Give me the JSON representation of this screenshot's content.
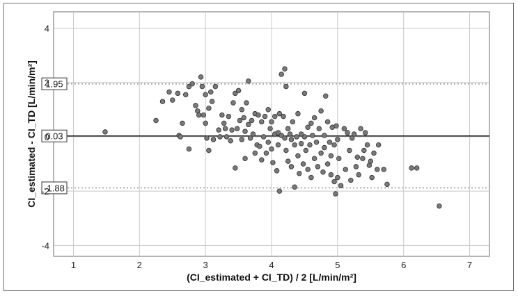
{
  "chart_data": {
    "type": "scatter",
    "title": "",
    "xlabel": "(CI_estimated + CI_TD) / 2 [L/min/m²]",
    "ylabel": "CI_estimated - CI_TD [L/min/m²]",
    "xlim": [
      0.7,
      7.3
    ],
    "ylim": [
      -4.4,
      4.6
    ],
    "xticks": [
      1,
      2,
      3,
      4,
      5,
      6,
      7
    ],
    "yticks": [
      -4,
      -2,
      0,
      2,
      4
    ],
    "grid": true,
    "reference_lines": [
      {
        "label": "1.95",
        "value": 1.95,
        "style": "dotted"
      },
      {
        "label": "0.03",
        "value": 0.03,
        "style": "solid"
      },
      {
        "label": "-1.88",
        "value": -1.88,
        "style": "dotted"
      }
    ],
    "points": [
      [
        1.48,
        0.18
      ],
      [
        2.25,
        0.6
      ],
      [
        2.35,
        1.3
      ],
      [
        2.45,
        1.65
      ],
      [
        2.5,
        1.35
      ],
      [
        2.58,
        1.6
      ],
      [
        2.6,
        0.05
      ],
      [
        2.62,
        0.0
      ],
      [
        2.65,
        0.5
      ],
      [
        2.7,
        1.55
      ],
      [
        2.75,
        1.85
      ],
      [
        2.75,
        -0.45
      ],
      [
        2.8,
        1.95
      ],
      [
        2.85,
        1.15
      ],
      [
        2.88,
        0.95
      ],
      [
        2.9,
        0.8
      ],
      [
        2.93,
        2.2
      ],
      [
        2.95,
        1.85
      ],
      [
        2.97,
        0.8
      ],
      [
        3.0,
        1.55
      ],
      [
        3.0,
        0.5
      ],
      [
        3.02,
        -0.05
      ],
      [
        3.05,
        -0.5
      ],
      [
        3.05,
        1.05
      ],
      [
        3.08,
        1.65
      ],
      [
        3.1,
        1.3
      ],
      [
        3.12,
        -0.1
      ],
      [
        3.15,
        1.85
      ],
      [
        3.2,
        0.25
      ],
      [
        3.22,
        0.0
      ],
      [
        3.25,
        0.8
      ],
      [
        3.28,
        0.5
      ],
      [
        3.3,
        0.3
      ],
      [
        3.32,
        0.0
      ],
      [
        3.35,
        0.75
      ],
      [
        3.38,
        -0.15
      ],
      [
        3.4,
        0.25
      ],
      [
        3.42,
        1.25
      ],
      [
        3.45,
        1.6
      ],
      [
        3.45,
        -1.15
      ],
      [
        3.48,
        0.3
      ],
      [
        3.5,
        1.7
      ],
      [
        3.52,
        0.6
      ],
      [
        3.55,
        1.0
      ],
      [
        3.55,
        -0.1
      ],
      [
        3.58,
        0.7
      ],
      [
        3.6,
        -0.8
      ],
      [
        3.6,
        0.2
      ],
      [
        3.62,
        1.25
      ],
      [
        3.65,
        2.05
      ],
      [
        3.65,
        0.45
      ],
      [
        3.68,
        -0.05
      ],
      [
        3.7,
        0.6
      ],
      [
        3.72,
        0.1
      ],
      [
        3.75,
        -0.6
      ],
      [
        3.75,
        0.85
      ],
      [
        3.78,
        -0.3
      ],
      [
        3.8,
        0.8
      ],
      [
        3.82,
        -0.35
      ],
      [
        3.85,
        0.55
      ],
      [
        3.85,
        -0.85
      ],
      [
        3.88,
        0.0
      ],
      [
        3.9,
        0.75
      ],
      [
        3.92,
        -0.6
      ],
      [
        3.95,
        1.0
      ],
      [
        3.95,
        -0.2
      ],
      [
        3.98,
        0.3
      ],
      [
        4.0,
        -0.45
      ],
      [
        4.0,
        0.55
      ],
      [
        4.02,
        -0.95
      ],
      [
        4.05,
        0.1
      ],
      [
        4.05,
        0.75
      ],
      [
        4.08,
        -1.25
      ],
      [
        4.1,
        0.15
      ],
      [
        4.1,
        -0.3
      ],
      [
        4.12,
        -2.0
      ],
      [
        4.12,
        0.85
      ],
      [
        4.15,
        0.05
      ],
      [
        4.15,
        2.3
      ],
      [
        4.18,
        0.75
      ],
      [
        4.2,
        -0.05
      ],
      [
        4.2,
        2.5
      ],
      [
        4.22,
        -0.5
      ],
      [
        4.22,
        1.85
      ],
      [
        4.25,
        0.3
      ],
      [
        4.25,
        -0.9
      ],
      [
        4.28,
        0.1
      ],
      [
        4.3,
        -1.1
      ],
      [
        4.3,
        -0.1
      ],
      [
        4.32,
        0.55
      ],
      [
        4.35,
        -0.3
      ],
      [
        4.35,
        -1.85
      ],
      [
        4.38,
        0.0
      ],
      [
        4.4,
        -0.7
      ],
      [
        4.4,
        0.85
      ],
      [
        4.42,
        -1.35
      ],
      [
        4.45,
        0.1
      ],
      [
        4.45,
        -0.25
      ],
      [
        4.48,
        -1.0
      ],
      [
        4.5,
        0.0
      ],
      [
        4.5,
        1.6
      ],
      [
        4.52,
        -0.5
      ],
      [
        4.55,
        0.35
      ],
      [
        4.55,
        -1.2
      ],
      [
        4.58,
        -0.3
      ],
      [
        4.6,
        0.5
      ],
      [
        4.6,
        -1.5
      ],
      [
        4.62,
        0.05
      ],
      [
        4.65,
        0.7
      ],
      [
        4.65,
        -0.8
      ],
      [
        4.68,
        -0.2
      ],
      [
        4.7,
        -1.1
      ],
      [
        4.72,
        0.3
      ],
      [
        4.75,
        -0.6
      ],
      [
        4.75,
        0.95
      ],
      [
        4.78,
        -1.3
      ],
      [
        4.8,
        0.05
      ],
      [
        4.8,
        -0.4
      ],
      [
        4.82,
        1.5
      ],
      [
        4.85,
        -1.0
      ],
      [
        4.85,
        0.55
      ],
      [
        4.88,
        -0.2
      ],
      [
        4.9,
        -0.7
      ],
      [
        4.9,
        -1.4
      ],
      [
        4.92,
        0.35
      ],
      [
        4.95,
        -0.3
      ],
      [
        4.95,
        -1.65
      ],
      [
        4.97,
        -2.1
      ],
      [
        4.98,
        0.4
      ],
      [
        5.0,
        -0.1
      ],
      [
        5.0,
        -1.5
      ],
      [
        5.02,
        -0.8
      ],
      [
        5.05,
        -1.8
      ],
      [
        5.1,
        0.3
      ],
      [
        5.12,
        -1.2
      ],
      [
        5.15,
        0.15
      ],
      [
        5.18,
        -0.5
      ],
      [
        5.2,
        -1.6
      ],
      [
        5.22,
        -0.05
      ],
      [
        5.25,
        0.1
      ],
      [
        5.28,
        -1.1
      ],
      [
        5.3,
        -0.75
      ],
      [
        5.32,
        -1.4
      ],
      [
        5.35,
        0.3
      ],
      [
        5.38,
        -0.8
      ],
      [
        5.4,
        -0.5
      ],
      [
        5.42,
        0.15
      ],
      [
        5.45,
        -0.3
      ],
      [
        5.48,
        -1.05
      ],
      [
        5.5,
        -0.9
      ],
      [
        5.52,
        -1.5
      ],
      [
        5.55,
        -0.6
      ],
      [
        5.6,
        -1.2
      ],
      [
        5.62,
        -0.3
      ],
      [
        5.7,
        -1.2
      ],
      [
        5.75,
        -1.75
      ],
      [
        6.12,
        -1.15
      ],
      [
        6.2,
        -1.15
      ],
      [
        6.54,
        -2.55
      ]
    ]
  },
  "colors": {
    "point_fill": "#7a7a7a",
    "point_stroke": "#3a3a3a",
    "grid": "#c8c8c8",
    "mean_line": "#111111",
    "limit_line": "#9a9a9a"
  }
}
